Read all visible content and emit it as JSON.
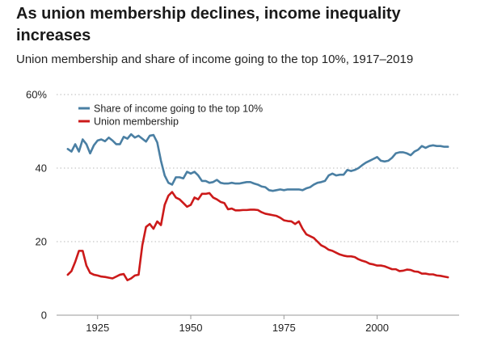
{
  "title": "As union membership declines, income inequality increases",
  "subtitle": "Union membership and share of income going to the top 10%, 1917–2019",
  "colors": {
    "top10": "#4a7fa3",
    "union": "#cc1a1a",
    "grid": "#c8c8c8",
    "axis": "#999999"
  },
  "chart_data": {
    "type": "line",
    "title": "As union membership declines, income inequality increases",
    "subtitle": "Union membership and share of income going to the top 10%, 1917–2019",
    "xlabel": "",
    "ylabel": "",
    "xlim": [
      1914,
      2022
    ],
    "ylim": [
      0,
      60
    ],
    "xticks": [
      1925,
      1950,
      1975,
      2000
    ],
    "yticks": [
      0,
      20,
      40,
      60
    ],
    "ytick_labels": [
      "0",
      "20",
      "40",
      "60%"
    ],
    "grid": true,
    "legend_position": "top-left",
    "series": [
      {
        "name": "Share of income going to the top 10%",
        "color": "#4a7fa3",
        "points": [
          [
            1917,
            45.2
          ],
          [
            1918,
            44.5
          ],
          [
            1919,
            46.5
          ],
          [
            1920,
            44.5
          ],
          [
            1921,
            47.8
          ],
          [
            1922,
            46.5
          ],
          [
            1923,
            44.0
          ],
          [
            1924,
            46.2
          ],
          [
            1925,
            47.5
          ],
          [
            1926,
            47.8
          ],
          [
            1927,
            47.3
          ],
          [
            1928,
            48.3
          ],
          [
            1929,
            47.5
          ],
          [
            1930,
            46.5
          ],
          [
            1931,
            46.5
          ],
          [
            1932,
            48.5
          ],
          [
            1933,
            48.0
          ],
          [
            1934,
            49.2
          ],
          [
            1935,
            48.3
          ],
          [
            1936,
            48.8
          ],
          [
            1937,
            48.0
          ],
          [
            1938,
            47.2
          ],
          [
            1939,
            48.8
          ],
          [
            1940,
            49.0
          ],
          [
            1941,
            47.0
          ],
          [
            1942,
            42.0
          ],
          [
            1943,
            38.0
          ],
          [
            1944,
            36.0
          ],
          [
            1945,
            35.5
          ],
          [
            1946,
            37.5
          ],
          [
            1947,
            37.5
          ],
          [
            1948,
            37.2
          ],
          [
            1949,
            39.0
          ],
          [
            1950,
            38.5
          ],
          [
            1951,
            39.0
          ],
          [
            1952,
            38.0
          ],
          [
            1953,
            36.5
          ],
          [
            1954,
            36.5
          ],
          [
            1955,
            36.0
          ],
          [
            1956,
            36.2
          ],
          [
            1957,
            36.8
          ],
          [
            1958,
            36.0
          ],
          [
            1959,
            35.8
          ],
          [
            1960,
            35.8
          ],
          [
            1961,
            36.0
          ],
          [
            1962,
            35.8
          ],
          [
            1963,
            35.8
          ],
          [
            1964,
            36.0
          ],
          [
            1965,
            36.2
          ],
          [
            1966,
            36.2
          ],
          [
            1967,
            35.8
          ],
          [
            1968,
            35.5
          ],
          [
            1969,
            35.0
          ],
          [
            1970,
            34.8
          ],
          [
            1971,
            34.0
          ],
          [
            1972,
            33.8
          ],
          [
            1973,
            34.0
          ],
          [
            1974,
            34.2
          ],
          [
            1975,
            34.0
          ],
          [
            1976,
            34.2
          ],
          [
            1977,
            34.2
          ],
          [
            1978,
            34.2
          ],
          [
            1979,
            34.2
          ],
          [
            1980,
            34.0
          ],
          [
            1981,
            34.5
          ],
          [
            1982,
            34.8
          ],
          [
            1983,
            35.5
          ],
          [
            1984,
            36.0
          ],
          [
            1985,
            36.2
          ],
          [
            1986,
            36.5
          ],
          [
            1987,
            38.0
          ],
          [
            1988,
            38.5
          ],
          [
            1989,
            38.0
          ],
          [
            1990,
            38.2
          ],
          [
            1991,
            38.2
          ],
          [
            1992,
            39.5
          ],
          [
            1993,
            39.2
          ],
          [
            1994,
            39.5
          ],
          [
            1995,
            40.0
          ],
          [
            1996,
            40.8
          ],
          [
            1997,
            41.5
          ],
          [
            1998,
            42.0
          ],
          [
            1999,
            42.5
          ],
          [
            2000,
            43.0
          ],
          [
            2001,
            42.0
          ],
          [
            2002,
            41.8
          ],
          [
            2003,
            42.0
          ],
          [
            2004,
            42.8
          ],
          [
            2005,
            44.0
          ],
          [
            2006,
            44.3
          ],
          [
            2007,
            44.3
          ],
          [
            2008,
            44.0
          ],
          [
            2009,
            43.5
          ],
          [
            2010,
            44.5
          ],
          [
            2011,
            45.0
          ],
          [
            2012,
            46.0
          ],
          [
            2013,
            45.5
          ],
          [
            2014,
            46.0
          ],
          [
            2015,
            46.2
          ],
          [
            2016,
            46.0
          ],
          [
            2017,
            46.0
          ],
          [
            2018,
            45.8
          ],
          [
            2019,
            45.8
          ]
        ]
      },
      {
        "name": "Union membership",
        "color": "#cc1a1a",
        "points": [
          [
            1917,
            11.0
          ],
          [
            1918,
            12.0
          ],
          [
            1919,
            14.5
          ],
          [
            1920,
            17.5
          ],
          [
            1921,
            17.5
          ],
          [
            1922,
            13.5
          ],
          [
            1923,
            11.5
          ],
          [
            1924,
            11.0
          ],
          [
            1925,
            10.8
          ],
          [
            1926,
            10.5
          ],
          [
            1927,
            10.4
          ],
          [
            1928,
            10.2
          ],
          [
            1929,
            10.0
          ],
          [
            1930,
            10.5
          ],
          [
            1931,
            11.0
          ],
          [
            1932,
            11.2
          ],
          [
            1933,
            9.5
          ],
          [
            1934,
            10.0
          ],
          [
            1935,
            10.8
          ],
          [
            1936,
            11.0
          ],
          [
            1937,
            19.0
          ],
          [
            1938,
            24.0
          ],
          [
            1939,
            24.8
          ],
          [
            1940,
            23.5
          ],
          [
            1941,
            25.5
          ],
          [
            1942,
            24.5
          ],
          [
            1943,
            30.0
          ],
          [
            1944,
            32.5
          ],
          [
            1945,
            33.5
          ],
          [
            1946,
            32.0
          ],
          [
            1947,
            31.5
          ],
          [
            1948,
            30.5
          ],
          [
            1949,
            29.5
          ],
          [
            1950,
            30.0
          ],
          [
            1951,
            32.0
          ],
          [
            1952,
            31.5
          ],
          [
            1953,
            33.0
          ],
          [
            1954,
            33.0
          ],
          [
            1955,
            33.2
          ],
          [
            1956,
            32.0
          ],
          [
            1957,
            31.5
          ],
          [
            1958,
            30.8
          ],
          [
            1959,
            30.5
          ],
          [
            1960,
            28.8
          ],
          [
            1961,
            29.0
          ],
          [
            1962,
            28.5
          ],
          [
            1963,
            28.5
          ],
          [
            1964,
            28.6
          ],
          [
            1965,
            28.6
          ],
          [
            1966,
            28.7
          ],
          [
            1967,
            28.7
          ],
          [
            1968,
            28.6
          ],
          [
            1969,
            28.0
          ],
          [
            1970,
            27.6
          ],
          [
            1971,
            27.4
          ],
          [
            1972,
            27.2
          ],
          [
            1973,
            27.0
          ],
          [
            1974,
            26.5
          ],
          [
            1975,
            25.8
          ],
          [
            1976,
            25.6
          ],
          [
            1977,
            25.5
          ],
          [
            1978,
            24.8
          ],
          [
            1979,
            25.5
          ],
          [
            1980,
            23.5
          ],
          [
            1981,
            22.0
          ],
          [
            1982,
            21.5
          ],
          [
            1983,
            21.0
          ],
          [
            1984,
            20.0
          ],
          [
            1985,
            19.0
          ],
          [
            1986,
            18.5
          ],
          [
            1987,
            17.8
          ],
          [
            1988,
            17.5
          ],
          [
            1989,
            17.0
          ],
          [
            1990,
            16.5
          ],
          [
            1991,
            16.2
          ],
          [
            1992,
            16.0
          ],
          [
            1993,
            16.0
          ],
          [
            1994,
            15.8
          ],
          [
            1995,
            15.2
          ],
          [
            1996,
            14.8
          ],
          [
            1997,
            14.5
          ],
          [
            1998,
            14.0
          ],
          [
            1999,
            13.8
          ],
          [
            2000,
            13.5
          ],
          [
            2001,
            13.5
          ],
          [
            2002,
            13.3
          ],
          [
            2003,
            12.9
          ],
          [
            2004,
            12.5
          ],
          [
            2005,
            12.5
          ],
          [
            2006,
            12.0
          ],
          [
            2007,
            12.1
          ],
          [
            2008,
            12.4
          ],
          [
            2009,
            12.3
          ],
          [
            2010,
            11.9
          ],
          [
            2011,
            11.8
          ],
          [
            2012,
            11.3
          ],
          [
            2013,
            11.3
          ],
          [
            2014,
            11.1
          ],
          [
            2015,
            11.1
          ],
          [
            2016,
            10.8
          ],
          [
            2017,
            10.7
          ],
          [
            2018,
            10.5
          ],
          [
            2019,
            10.3
          ]
        ]
      }
    ]
  }
}
